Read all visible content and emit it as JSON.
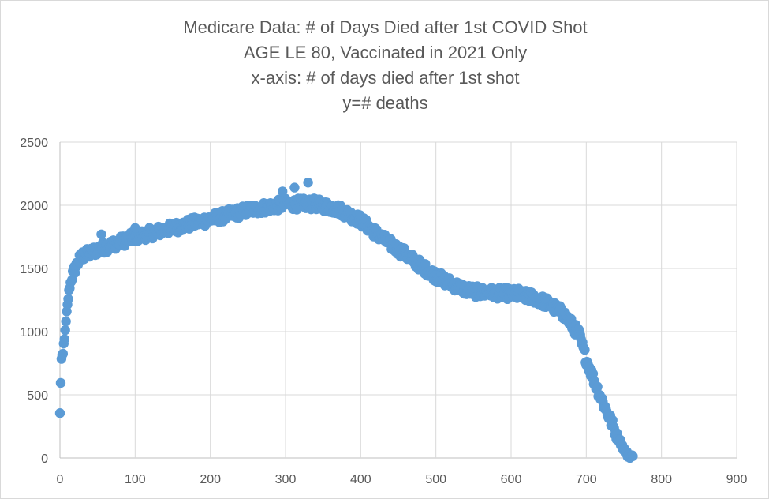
{
  "chart_data": {
    "type": "scatter",
    "title_lines": [
      "Medicare Data: # of Days Died after 1st COVID Shot",
      "AGE LE 80, Vaccinated in 2021 Only",
      "x-axis: # of days died after 1st shot",
      "y=# deaths"
    ],
    "xlabel": "",
    "ylabel": "",
    "xlim": [
      0,
      900
    ],
    "ylim": [
      0,
      2500
    ],
    "x_ticks": [
      0,
      100,
      200,
      300,
      400,
      500,
      600,
      700,
      800,
      900
    ],
    "y_ticks": [
      0,
      500,
      1000,
      1500,
      2000,
      2500
    ],
    "grid": true,
    "legend": "none",
    "marker_color": "#5b9bd5",
    "series": [
      {
        "anchors": [
          [
            0,
            350
          ],
          [
            1,
            600
          ],
          [
            2,
            780
          ],
          [
            4,
            820
          ],
          [
            5,
            900
          ],
          [
            7,
            1000
          ],
          [
            9,
            1150
          ],
          [
            12,
            1320
          ],
          [
            15,
            1420
          ],
          [
            20,
            1500
          ],
          [
            25,
            1560
          ],
          [
            30,
            1600
          ],
          [
            40,
            1620
          ],
          [
            50,
            1650
          ],
          [
            70,
            1690
          ],
          [
            100,
            1750
          ],
          [
            150,
            1820
          ],
          [
            200,
            1890
          ],
          [
            250,
            1960
          ],
          [
            300,
            2010
          ],
          [
            340,
            2010
          ],
          [
            370,
            1970
          ],
          [
            400,
            1880
          ],
          [
            420,
            1780
          ],
          [
            440,
            1690
          ],
          [
            460,
            1610
          ],
          [
            480,
            1520
          ],
          [
            500,
            1440
          ],
          [
            520,
            1380
          ],
          [
            540,
            1330
          ],
          [
            560,
            1310
          ],
          [
            600,
            1300
          ],
          [
            630,
            1270
          ],
          [
            650,
            1220
          ],
          [
            670,
            1140
          ],
          [
            690,
            980
          ],
          [
            700,
            780
          ],
          [
            710,
            620
          ],
          [
            720,
            470
          ],
          [
            730,
            330
          ],
          [
            740,
            190
          ],
          [
            750,
            70
          ],
          [
            755,
            25
          ],
          [
            762,
            5
          ]
        ],
        "outliers": [
          [
            330,
            2180
          ],
          [
            312,
            2140
          ],
          [
            296,
            2110
          ],
          [
            55,
            1770
          ],
          [
            100,
            1820
          ],
          [
            610,
            1340
          ]
        ]
      }
    ]
  }
}
